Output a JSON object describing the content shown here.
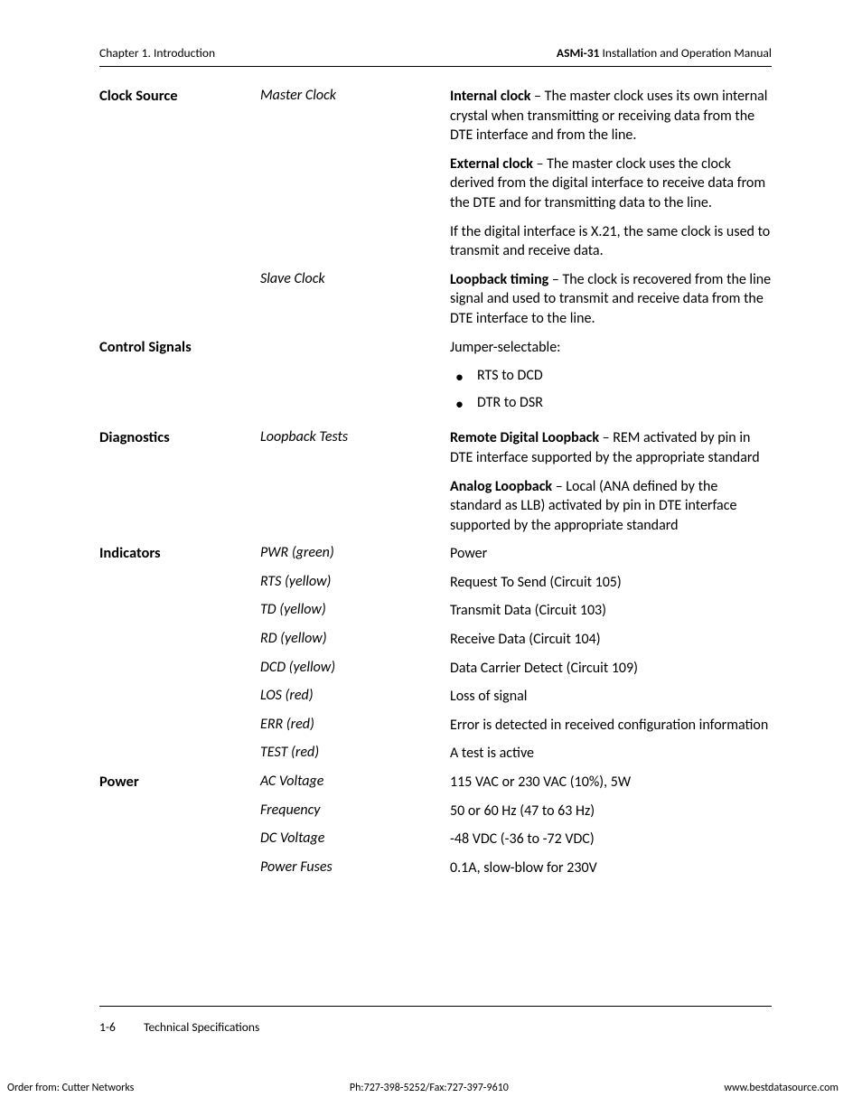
{
  "header": {
    "chapter": "Chapter 1.  Introduction",
    "doc_model": "ASMi-31",
    "doc_rest": " Installation and Operation Manual"
  },
  "sections": [
    {
      "heading": "Clock Source",
      "rows": [
        {
          "sub": "Master Clock",
          "paras": [
            {
              "lead": "Internal clock",
              "text": " – The master clock uses its own internal crystal when transmitting or receiving data from the DTE interface and from the line."
            },
            {
              "lead": "External clock",
              "text": " – The master clock uses the clock derived from the digital interface to receive data from the DTE and for transmitting data to the line."
            },
            {
              "lead": "",
              "text": "If the digital interface is X.21, the same clock is used to transmit and receive data."
            }
          ]
        },
        {
          "sub": "Slave Clock",
          "paras": [
            {
              "lead": "Loopback timing",
              "text": " – The clock is recovered from the line signal and used to transmit and receive data from the DTE interface to the line."
            }
          ]
        }
      ]
    },
    {
      "heading": "Control Signals",
      "rows": [
        {
          "sub": "",
          "intro": "Jumper-selectable:",
          "bullets": [
            "RTS to DCD",
            "DTR to DSR"
          ]
        }
      ]
    },
    {
      "heading": "Diagnostics",
      "rows": [
        {
          "sub": "Loopback Tests",
          "paras": [
            {
              "lead": "Remote Digital Loopback",
              "text": " – REM activated by pin in DTE interface supported by the appropriate standard"
            },
            {
              "lead": "Analog Loopback",
              "text": " – Local (ANA defined by the standard as LLB) activated by pin in DTE interface supported by the appropriate standard"
            }
          ]
        }
      ]
    },
    {
      "heading": "Indicators",
      "rows": [
        {
          "sub": "PWR (green)",
          "plain": "Power"
        },
        {
          "sub": "RTS (yellow)",
          "plain": "Request To Send (Circuit 105)"
        },
        {
          "sub": "TD (yellow)",
          "plain": "Transmit Data (Circuit 103)"
        },
        {
          "sub": "RD (yellow)",
          "plain": "Receive Data (Circuit 104)"
        },
        {
          "sub": "DCD (yellow)",
          "plain": "Data Carrier Detect (Circuit 109)"
        },
        {
          "sub": "LOS (red)",
          "plain": "Loss of signal"
        },
        {
          "sub": "ERR (red)",
          "plain": "Error is detected in received configuration information"
        },
        {
          "sub": "TEST (red)",
          "plain": "A test is active"
        }
      ]
    },
    {
      "heading": "Power",
      "rows": [
        {
          "sub": "AC Voltage",
          "plain": "115 VAC or 230 VAC (10%), 5W"
        },
        {
          "sub": "Frequency",
          "plain": "50 or 60 Hz (47 to 63 Hz)"
        },
        {
          "sub": "DC Voltage",
          "plain": "-48 VDC (-36 to -72 VDC)"
        },
        {
          "sub": "Power Fuses",
          "plain": "0.1A, slow-blow for 230V"
        }
      ]
    }
  ],
  "pagefoot": {
    "pagenum": "1-6",
    "section": "Technical Specifications"
  },
  "footer": {
    "left": "Order from: Cutter Networks",
    "center": "Ph:727-398-5252/Fax:727-397-9610",
    "right": "www.bestdatasource.com"
  }
}
